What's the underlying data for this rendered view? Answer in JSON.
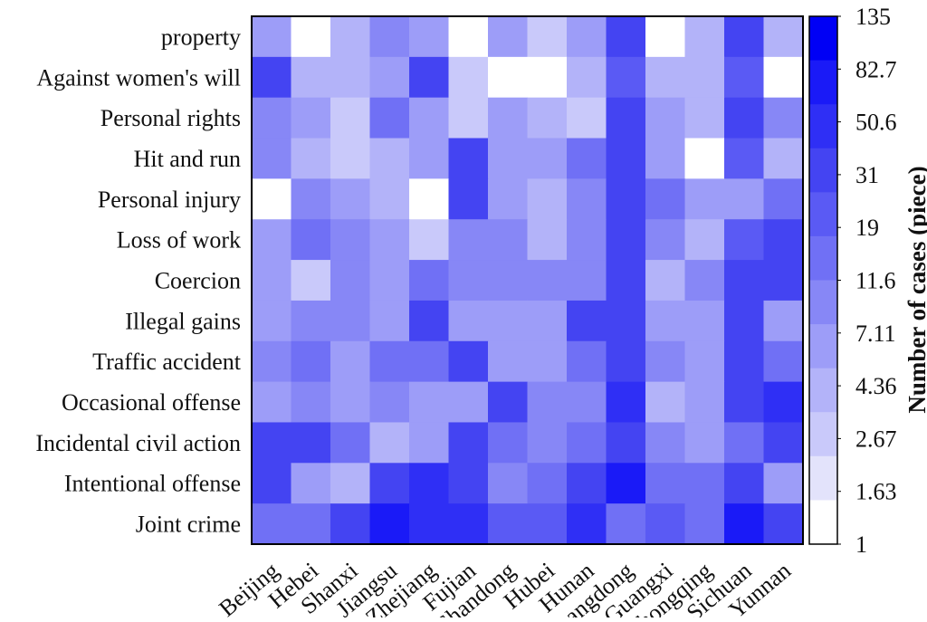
{
  "chart_data": {
    "type": "heatmap",
    "title": "",
    "xlabel": "",
    "ylabel": "",
    "x_categories": [
      "Beijing",
      "Hebei",
      "Shanxi",
      "Jiangsu",
      "Zhejiang",
      "Fujian",
      "Shandong",
      "Hubei",
      "Hunan",
      "Guangdong",
      "Guangxi",
      "Chongqing",
      "Sichuan",
      "Yunnan"
    ],
    "y_categories": [
      "property",
      "Against women's will",
      "Personal rights",
      "Hit and run",
      "Personal injury",
      "Loss of work",
      "Coercion",
      "Illegal gains",
      "Traffic accident",
      "Occasional offense",
      "Incidental civil action",
      "Intentional offense",
      "Joint crime"
    ],
    "values": [
      [
        5,
        1,
        4,
        9,
        5,
        1,
        6,
        2,
        7,
        30,
        1,
        4,
        30,
        4
      ],
      [
        30,
        4,
        4,
        5,
        30,
        2,
        1,
        1,
        4,
        19,
        4,
        4,
        19,
        1
      ],
      [
        9,
        5,
        2,
        12,
        6,
        2,
        6,
        4,
        2,
        30,
        6,
        4,
        30,
        8
      ],
      [
        9,
        4,
        2,
        4,
        6,
        30,
        6,
        6,
        12,
        30,
        6,
        1,
        19,
        4
      ],
      [
        1,
        9,
        6,
        4,
        1,
        30,
        6,
        4,
        9,
        31,
        12,
        6,
        6,
        12
      ],
      [
        6,
        12,
        9,
        6,
        2,
        8,
        8,
        4,
        9,
        31,
        9,
        4,
        19,
        30
      ],
      [
        6,
        2,
        9,
        6,
        12,
        8,
        8,
        8,
        9,
        31,
        4,
        9,
        31,
        30
      ],
      [
        6,
        9,
        9,
        6,
        40,
        6,
        6,
        6,
        30,
        31,
        6,
        6,
        31,
        5
      ],
      [
        9,
        12,
        6,
        12,
        12,
        30,
        6,
        6,
        12,
        31,
        9,
        6,
        30,
        12
      ],
      [
        6,
        9,
        6,
        9,
        6,
        6,
        30,
        9,
        9,
        45,
        4,
        6,
        30,
        60
      ],
      [
        30,
        30,
        12,
        4,
        6,
        30,
        12,
        9,
        12,
        31,
        9,
        6,
        12,
        31
      ],
      [
        30,
        6,
        4,
        31,
        60,
        40,
        9,
        12,
        31,
        100,
        12,
        12,
        30,
        6
      ],
      [
        12,
        12,
        30,
        100,
        60,
        60,
        19,
        19,
        60,
        12,
        19,
        12,
        100,
        31
      ]
    ],
    "colorbar": {
      "label": "Number of cases (piece)",
      "ticks": [
        "135",
        "82.7",
        "50.6",
        "31",
        "19",
        "11.6",
        "7.11",
        "4.36",
        "2.67",
        "1.63",
        "1"
      ],
      "levels": [
        "#0000f5",
        "#1a1af7",
        "#2f2ff5",
        "#4444f2",
        "#5a5af4",
        "#7070f5",
        "#8787f6",
        "#9d9df8",
        "#b3b3f9",
        "#c9c9fa",
        "#e3e3fb",
        "#ffffff"
      ],
      "scale": "log"
    }
  }
}
